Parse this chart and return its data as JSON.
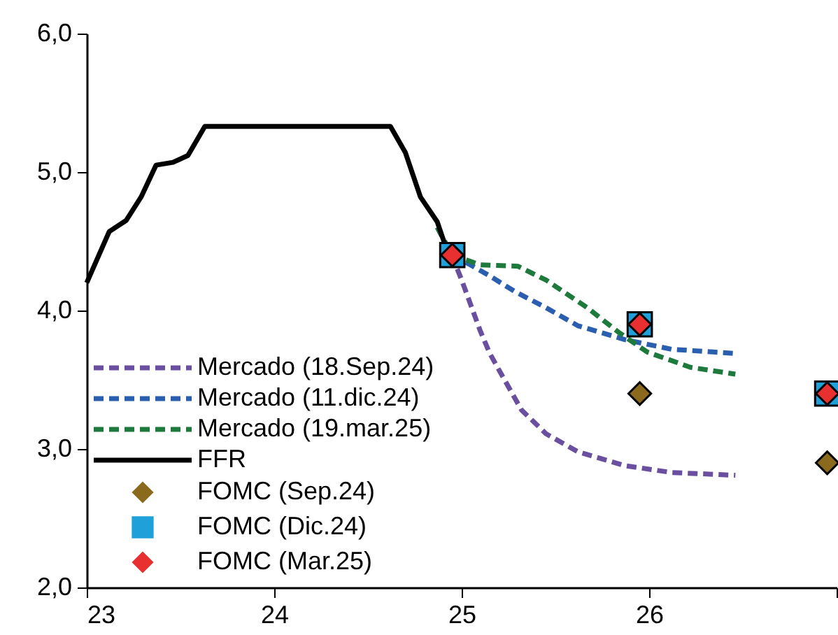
{
  "chart_data": {
    "type": "line",
    "xlim": [
      23,
      27
    ],
    "xticks": [
      23,
      24,
      25,
      26,
      {
        "value": 27,
        "label": null
      }
    ],
    "ylim": [
      2,
      6
    ],
    "yticks": [
      {
        "value": 2,
        "label": "2,0"
      },
      {
        "value": 3,
        "label": "3,0"
      },
      {
        "value": 4,
        "label": "4,0"
      },
      {
        "value": 5,
        "label": "5,0"
      },
      {
        "value": 6,
        "label": "6,0"
      }
    ],
    "grid": false,
    "legend": "bottom left",
    "series": [
      {
        "name": "Mercado (18.Sep.24)",
        "line_style": "dashed",
        "marker": "none",
        "color": "#6a4ea0",
        "x": [
          24.87,
          24.95,
          25.0,
          25.1,
          25.15,
          25.22,
          25.32,
          25.45,
          25.62,
          25.87,
          26.12,
          26.46
        ],
        "values": [
          4.6,
          4.39,
          4.22,
          3.85,
          3.69,
          3.52,
          3.28,
          3.11,
          2.98,
          2.88,
          2.83,
          2.81
        ]
      },
      {
        "name": "Mercado (11.dic.24)",
        "line_style": "dashed",
        "marker": "none",
        "color": "#2a5fb0",
        "x": [
          24.95,
          25.02,
          25.15,
          25.28,
          25.45,
          25.62,
          25.87,
          26.12,
          26.46
        ],
        "values": [
          4.4,
          4.35,
          4.25,
          4.14,
          4.02,
          3.89,
          3.79,
          3.72,
          3.69
        ]
      },
      {
        "name": "Mercado (19.mar.25)",
        "line_style": "dashed",
        "marker": "none",
        "color": "#1e7a3c",
        "x": [
          24.87,
          24.95,
          25.1,
          25.3,
          25.45,
          25.67,
          25.84,
          25.99,
          26.22,
          26.46
        ],
        "values": [
          4.6,
          4.4,
          4.33,
          4.32,
          4.22,
          4.02,
          3.84,
          3.7,
          3.59,
          3.54
        ]
      },
      {
        "name": "FFR",
        "line_style": "solid",
        "marker": "none",
        "color": "#000000",
        "x": [
          23,
          23.12,
          23.21,
          23.29,
          23.37,
          23.46,
          23.54,
          23.63,
          24.62,
          24.7,
          24.78,
          24.87,
          24.93
        ],
        "values": [
          4.2,
          4.57,
          4.65,
          4.82,
          5.05,
          5.07,
          5.12,
          5.33,
          5.33,
          5.14,
          4.82,
          4.64,
          4.4
        ]
      },
      {
        "name": "FOMC (Sep.24)",
        "type": "scatter",
        "marker": "diamond",
        "color": "#8b6a1e",
        "x": [
          25.95,
          26.95
        ],
        "values": [
          3.4,
          2.9
        ]
      },
      {
        "name": "FOMC (Dic.24)",
        "type": "scatter",
        "marker": "square",
        "color": "#1fa0d8",
        "x": [
          24.95,
          25.95,
          26.95
        ],
        "values": [
          4.4,
          3.9,
          3.4
        ]
      },
      {
        "name": "FOMC (Mar.25)",
        "type": "scatter",
        "marker": "diamond",
        "color": "#e83030",
        "x": [
          24.95,
          25.95,
          26.95
        ],
        "values": [
          4.4,
          3.9,
          3.4
        ]
      }
    ]
  }
}
